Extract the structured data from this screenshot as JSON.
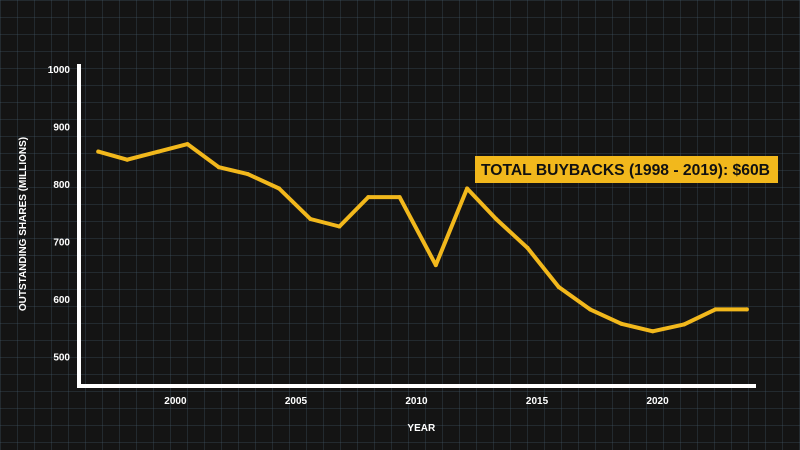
{
  "chart_data": {
    "type": "line",
    "title": "",
    "xlabel": "YEAR",
    "ylabel": "OUTSTANDING SHARES (MILLIONS)",
    "xlim": [
      1996,
      2024
    ],
    "ylim": [
      450,
      1030
    ],
    "x_ticks": [
      2000,
      2005,
      2010,
      2015,
      2020
    ],
    "y_ticks": [
      500,
      600,
      700,
      800,
      900,
      1000
    ],
    "grid": true,
    "series": [
      {
        "color": "#F2B81C",
        "x": [
          1996.8,
          1998.0,
          1999.3,
          2000.5,
          2001.8,
          2003.0,
          2004.3,
          2005.6,
          2006.8,
          2008.0,
          2009.3,
          2010.8,
          2012.1,
          2013.3,
          2014.6,
          2015.9,
          2017.2,
          2018.5,
          2019.8,
          2021.1,
          2022.4,
          2023.7
        ],
        "values": [
          857,
          843,
          857,
          870,
          830,
          818,
          793,
          740,
          727,
          778,
          778,
          660,
          793,
          740,
          690,
          622,
          583,
          558,
          545,
          557,
          583,
          583
        ]
      }
    ],
    "annotations": [
      {
        "text": "TOTAL BUYBACKS (1998 - 2019): $60B",
        "background": "#F2B81C",
        "color": "#111111"
      }
    ]
  }
}
